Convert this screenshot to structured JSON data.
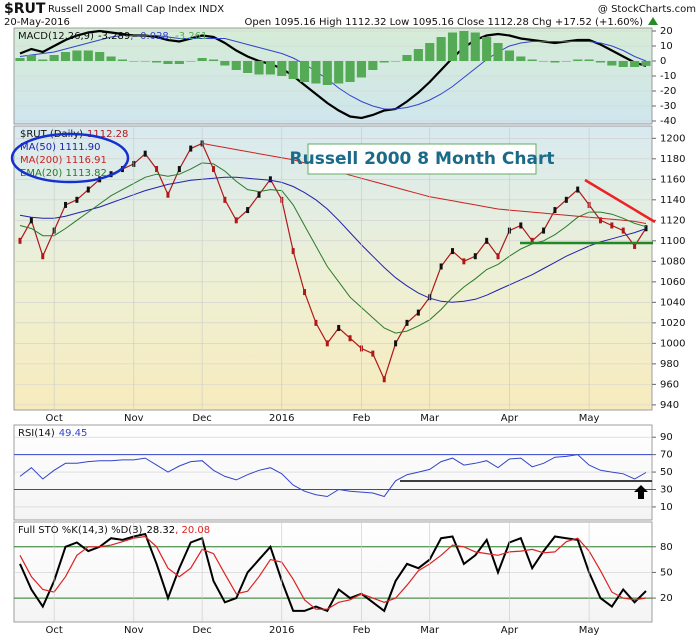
{
  "header": {
    "symbol": "$RUT",
    "name": "Russell 2000 Small Cap Index INDX",
    "source": "@ StockCharts.com",
    "date": "20-May-2016",
    "quote": "Open 1095.16 High 1112.32 Low 1095.16 Close 1112.28 Chg +17.52 (+1.60%)"
  },
  "annotation": "Russell 2000 8 Month Chart",
  "chart_data": [
    {
      "type": "line",
      "title": "MACD(12,26,9)",
      "legend": "inline",
      "ylim": [
        -42,
        22
      ],
      "yticks": [
        20,
        10,
        0,
        -10,
        -20,
        -30,
        -40
      ],
      "series": [
        {
          "name": "-3.289",
          "color": "#000000",
          "style": "line",
          "width": 2.2,
          "values": [
            5,
            8,
            6,
            10,
            14,
            17,
            19,
            20,
            19,
            18,
            17,
            17,
            16,
            14,
            13,
            15,
            17,
            16,
            12,
            7,
            3,
            0,
            -2,
            -5,
            -10,
            -16,
            -22,
            -28,
            -33,
            -37,
            -38,
            -36,
            -33,
            -32,
            -27,
            -21,
            -14,
            -6,
            2,
            9,
            14,
            17,
            18,
            17,
            15,
            14,
            13,
            12,
            13,
            14,
            14,
            11,
            7,
            3,
            -1,
            -3.289
          ]
        },
        {
          "name": ", -0.028",
          "color": "#3344cc",
          "style": "line",
          "width": 1,
          "values": [
            3,
            4,
            5,
            6,
            8,
            10,
            12,
            14,
            16,
            17,
            17,
            17,
            17,
            16,
            15,
            15,
            15,
            15,
            15,
            13,
            11,
            9,
            7,
            5,
            2,
            -2,
            -7,
            -12,
            -18,
            -23,
            -27,
            -30,
            -32,
            -32,
            -31,
            -29,
            -26,
            -22,
            -17,
            -11,
            -5,
            1,
            6,
            10,
            12,
            13,
            13,
            13,
            13,
            13,
            13,
            12,
            10,
            7,
            3,
            -0.028
          ]
        },
        {
          "name": ", -3.261",
          "color": "#55aa55",
          "style": "bars",
          "values": [
            2,
            4,
            1,
            4,
            6,
            7,
            7,
            6,
            3,
            1,
            0,
            0,
            -1,
            -2,
            -2,
            0,
            2,
            1,
            -3,
            -6,
            -8,
            -9,
            -9,
            -10,
            -12,
            -14,
            -15,
            -16,
            -15,
            -14,
            -11,
            -6,
            -1,
            0,
            4,
            8,
            12,
            16,
            19,
            20,
            19,
            16,
            12,
            7,
            3,
            1,
            0,
            -1,
            0,
            1,
            1,
            -1,
            -3,
            -4,
            -4,
            -3.261
          ]
        }
      ]
    },
    {
      "type": "line",
      "title": "$RUT (Daily)",
      "legend": "stacked",
      "ylim": [
        935,
        1212
      ],
      "yticks": [
        940,
        960,
        980,
        1000,
        1020,
        1040,
        1060,
        1080,
        1100,
        1120,
        1140,
        1160,
        1180,
        1200
      ],
      "categories": [
        null,
        null,
        null,
        "Oct",
        null,
        null,
        null,
        null,
        null,
        null,
        "Nov",
        null,
        null,
        null,
        null,
        null,
        "Dec",
        null,
        null,
        null,
        null,
        null,
        null,
        "2016",
        null,
        null,
        null,
        null,
        null,
        null,
        "Feb",
        null,
        null,
        null,
        null,
        null,
        "Mar",
        null,
        null,
        null,
        null,
        null,
        null,
        "Apr",
        null,
        null,
        null,
        null,
        null,
        null,
        "May",
        null,
        null,
        null,
        null,
        null
      ],
      "series": [
        {
          "name": "1112.28",
          "color": "#b01818",
          "style": "line",
          "width": 1.2,
          "markers": true,
          "values": [
            1100,
            1120,
            1085,
            1110,
            1135,
            1140,
            1150,
            1160,
            1165,
            1170,
            1175,
            1185,
            1170,
            1145,
            1170,
            1190,
            1195,
            1170,
            1140,
            1120,
            1130,
            1145,
            1160,
            1140,
            1090,
            1050,
            1020,
            1000,
            1015,
            1005,
            995,
            990,
            965,
            1000,
            1020,
            1030,
            1045,
            1075,
            1090,
            1080,
            1085,
            1100,
            1085,
            1110,
            1115,
            1100,
            1110,
            1130,
            1140,
            1150,
            1135,
            1120,
            1115,
            1110,
            1095,
            1112.28
          ]
        },
        {
          "name": "MA(50) 1111.90",
          "color": "#2222aa",
          "style": "line",
          "width": 1,
          "values": [
            1125,
            1123,
            1122,
            1122,
            1124,
            1127,
            1130,
            1133,
            1137,
            1141,
            1145,
            1149,
            1152,
            1155,
            1157,
            1159,
            1160,
            1161,
            1162,
            1162,
            1161,
            1160,
            1159,
            1157,
            1153,
            1147,
            1140,
            1131,
            1120,
            1108,
            1096,
            1085,
            1074,
            1064,
            1056,
            1049,
            1044,
            1041,
            1040,
            1041,
            1043,
            1047,
            1052,
            1057,
            1062,
            1067,
            1073,
            1079,
            1085,
            1090,
            1095,
            1099,
            1102,
            1105,
            1108,
            1111.9
          ]
        },
        {
          "name": "MA(200) 1116.91",
          "color": "#cc2222",
          "style": "line",
          "width": 1,
          "values": [
            null,
            null,
            null,
            null,
            null,
            null,
            null,
            null,
            null,
            null,
            null,
            null,
            null,
            null,
            null,
            null,
            1195,
            1193,
            1191,
            1189,
            1187,
            1185,
            1183,
            1181,
            1179,
            1176,
            1173,
            1170,
            1167,
            1164,
            1161,
            1158,
            1155,
            1152,
            1149,
            1146,
            1143,
            1141,
            1139,
            1137,
            1135,
            1133,
            1131,
            1130,
            1129,
            1128,
            1127,
            1126,
            1125,
            1124,
            1123,
            1122,
            1121,
            1120,
            1119,
            1116.91
          ]
        },
        {
          "name": "EMA(20) 1113.82",
          "color": "#2a7a2a",
          "style": "line",
          "width": 1,
          "values": [
            1115,
            1112,
            1105,
            1105,
            1112,
            1120,
            1128,
            1136,
            1144,
            1150,
            1156,
            1162,
            1165,
            1163,
            1165,
            1170,
            1176,
            1175,
            1168,
            1158,
            1150,
            1148,
            1150,
            1149,
            1135,
            1115,
            1095,
            1075,
            1060,
            1045,
            1035,
            1025,
            1015,
            1010,
            1012,
            1017,
            1023,
            1033,
            1045,
            1055,
            1063,
            1072,
            1077,
            1085,
            1092,
            1097,
            1100,
            1106,
            1114,
            1123,
            1128,
            1128,
            1126,
            1122,
            1117,
            1113.82
          ]
        }
      ]
    },
    {
      "type": "line",
      "title": "RSI(14)",
      "legend": "inline",
      "ylim": [
        -5,
        104
      ],
      "yticks": [
        10,
        30,
        50,
        70,
        90
      ],
      "ref_lines": [
        30,
        70
      ],
      "ref_color": "#3344cc",
      "series": [
        {
          "name": "49.45",
          "color": "#3344cc",
          "style": "line",
          "width": 1,
          "values": [
            45,
            55,
            42,
            52,
            60,
            60,
            62,
            63,
            63,
            64,
            64,
            66,
            58,
            50,
            57,
            62,
            63,
            52,
            45,
            41,
            47,
            52,
            55,
            48,
            35,
            28,
            24,
            22,
            30,
            28,
            27,
            26,
            22,
            40,
            47,
            50,
            53,
            62,
            66,
            58,
            60,
            63,
            55,
            65,
            66,
            56,
            60,
            67,
            68,
            70,
            58,
            52,
            50,
            48,
            42,
            49.45
          ]
        }
      ]
    },
    {
      "type": "line",
      "title": "Full STO %K(14,3) %D(3)",
      "legend": "inline",
      "ylim": [
        -8,
        109
      ],
      "yticks": [
        20,
        50,
        80
      ],
      "ref_lines": [
        20,
        80
      ],
      "ref_color": "#2a7a2a",
      "categories": [
        null,
        null,
        null,
        "Oct",
        null,
        null,
        null,
        null,
        null,
        null,
        "Nov",
        null,
        null,
        null,
        null,
        null,
        "Dec",
        null,
        null,
        null,
        null,
        null,
        null,
        "2016",
        null,
        null,
        null,
        null,
        null,
        null,
        "Feb",
        null,
        null,
        null,
        null,
        null,
        "Mar",
        null,
        null,
        null,
        null,
        null,
        null,
        "Apr",
        null,
        null,
        null,
        null,
        null,
        null,
        "May",
        null,
        null,
        null,
        null,
        null
      ],
      "series": [
        {
          "name": "28.32",
          "color": "#000000",
          "style": "line",
          "width": 2,
          "values": [
            60,
            30,
            10,
            40,
            80,
            85,
            75,
            80,
            90,
            88,
            92,
            95,
            60,
            20,
            55,
            85,
            90,
            40,
            15,
            20,
            50,
            65,
            80,
            40,
            5,
            5,
            10,
            5,
            30,
            20,
            25,
            15,
            5,
            40,
            60,
            55,
            65,
            90,
            92,
            60,
            70,
            88,
            50,
            85,
            90,
            55,
            75,
            92,
            90,
            88,
            50,
            20,
            10,
            30,
            15,
            28.32
          ]
        },
        {
          "name": ", 20.08",
          "color": "#dd2222",
          "style": "line",
          "width": 1.2,
          "values": [
            70,
            45,
            30,
            27,
            45,
            70,
            80,
            80,
            82,
            86,
            90,
            92,
            80,
            55,
            45,
            55,
            77,
            72,
            48,
            25,
            28,
            45,
            65,
            62,
            42,
            18,
            7,
            7,
            15,
            18,
            25,
            20,
            15,
            20,
            35,
            52,
            60,
            70,
            82,
            80,
            74,
            72,
            70,
            74,
            75,
            77,
            73,
            74,
            86,
            90,
            75,
            52,
            27,
            20,
            18,
            20.08
          ]
        }
      ]
    }
  ]
}
